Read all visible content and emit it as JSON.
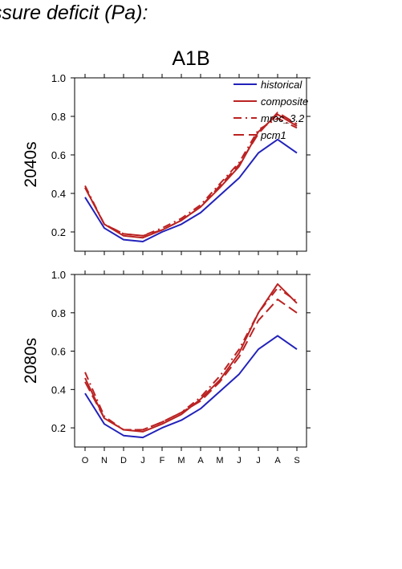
{
  "heading": "essure deficit (Pa):",
  "chart_data": {
    "type": "line",
    "title": "A1B",
    "categories": [
      "O",
      "N",
      "D",
      "J",
      "F",
      "M",
      "A",
      "M",
      "J",
      "J",
      "A",
      "S"
    ],
    "ylim": [
      0.1,
      1.0
    ],
    "yticks": [
      0.2,
      0.4,
      0.6,
      0.8,
      1.0
    ],
    "ytick_labels": [
      "0.2",
      "0.4",
      "0.6",
      "0.8",
      "1.0"
    ],
    "legend": {
      "position": "top-right"
    },
    "colors": {
      "historical": "#2222bb",
      "projections": "#bb2222"
    },
    "series_styles": [
      "solid",
      "solid",
      "dash-dot",
      "dashed"
    ],
    "panels": [
      {
        "label": "2040s",
        "series": [
          {
            "name": "historical",
            "values": [
              0.38,
              0.22,
              0.16,
              0.15,
              0.2,
              0.24,
              0.3,
              0.39,
              0.48,
              0.61,
              0.68,
              0.61
            ]
          },
          {
            "name": "composite",
            "values": [
              0.43,
              0.24,
              0.18,
              0.17,
              0.21,
              0.26,
              0.33,
              0.43,
              0.54,
              0.72,
              0.81,
              0.75
            ]
          },
          {
            "name": "mroc_3.2",
            "values": [
              0.44,
              0.24,
              0.19,
              0.18,
              0.22,
              0.27,
              0.34,
              0.45,
              0.56,
              0.73,
              0.79,
              0.74
            ]
          },
          {
            "name": "pcm1",
            "values": [
              0.43,
              0.24,
              0.19,
              0.18,
              0.21,
              0.26,
              0.33,
              0.44,
              0.55,
              0.71,
              0.82,
              0.76
            ]
          }
        ]
      },
      {
        "label": "2080s",
        "series": [
          {
            "name": "historical",
            "values": [
              0.38,
              0.22,
              0.16,
              0.15,
              0.2,
              0.24,
              0.3,
              0.39,
              0.48,
              0.61,
              0.68,
              0.61
            ]
          },
          {
            "name": "composite",
            "values": [
              0.46,
              0.25,
              0.19,
              0.18,
              0.22,
              0.27,
              0.35,
              0.45,
              0.59,
              0.8,
              0.95,
              0.85
            ]
          },
          {
            "name": "mroc_3.2",
            "values": [
              0.49,
              0.26,
              0.19,
              0.19,
              0.23,
              0.28,
              0.36,
              0.47,
              0.61,
              0.8,
              0.93,
              0.86
            ]
          },
          {
            "name": "pcm1",
            "values": [
              0.44,
              0.25,
              0.19,
              0.19,
              0.23,
              0.28,
              0.34,
              0.44,
              0.57,
              0.76,
              0.87,
              0.8
            ]
          }
        ]
      }
    ]
  }
}
